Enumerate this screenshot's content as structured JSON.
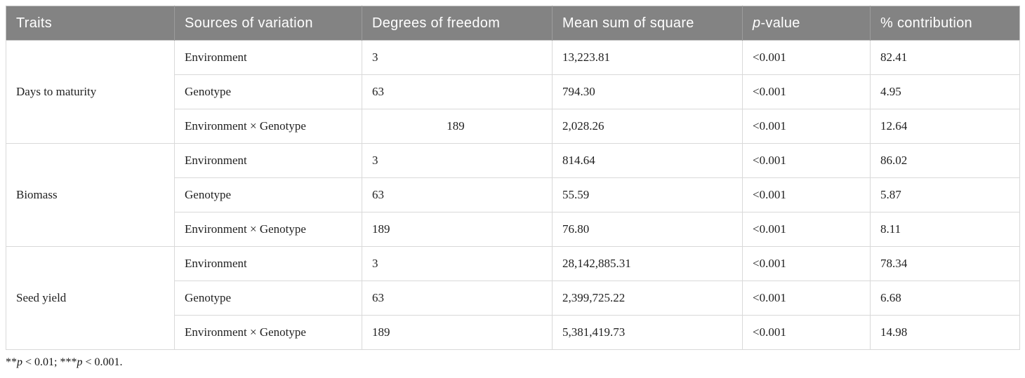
{
  "colors": {
    "header_bg": "#838383",
    "header_text": "#ffffff",
    "body_text": "#1f1f1f",
    "grid_line": "#d9d9d9",
    "group_line": "#c3c3c3"
  },
  "table": {
    "columns": [
      {
        "label": "Traits"
      },
      {
        "label": "Sources of variation"
      },
      {
        "label": "Degrees of freedom"
      },
      {
        "label": "Mean sum of square"
      },
      {
        "label_italic": "p",
        "label_rest": "-value"
      },
      {
        "label": "% contribution"
      }
    ],
    "groups": [
      {
        "trait": "Days to maturity",
        "rows": [
          {
            "source": "Environment",
            "df": "3",
            "df_centered": false,
            "mean_sum_of_square": "13,223.81",
            "p_value": "<0.001",
            "contribution": "82.41"
          },
          {
            "source": "Genotype",
            "df": "63",
            "df_centered": false,
            "mean_sum_of_square": "794.30",
            "p_value": "<0.001",
            "contribution": "4.95"
          },
          {
            "source": "Environment × Genotype",
            "df": "189",
            "df_centered": true,
            "mean_sum_of_square": "2,028.26",
            "p_value": "<0.001",
            "contribution": "12.64"
          }
        ]
      },
      {
        "trait": "Biomass",
        "rows": [
          {
            "source": "Environment",
            "df": "3",
            "df_centered": false,
            "mean_sum_of_square": "814.64",
            "p_value": "<0.001",
            "contribution": "86.02"
          },
          {
            "source": "Genotype",
            "df": "63",
            "df_centered": false,
            "mean_sum_of_square": "55.59",
            "p_value": "<0.001",
            "contribution": "5.87"
          },
          {
            "source": "Environment × Genotype",
            "df": "189",
            "df_centered": false,
            "mean_sum_of_square": "76.80",
            "p_value": "<0.001",
            "contribution": "8.11"
          }
        ]
      },
      {
        "trait": "Seed yield",
        "rows": [
          {
            "source": "Environment",
            "df": "3",
            "df_centered": false,
            "mean_sum_of_square": "28,142,885.31",
            "p_value": "<0.001",
            "contribution": "78.34"
          },
          {
            "source": "Genotype",
            "df": "63",
            "df_centered": false,
            "mean_sum_of_square": "2,399,725.22",
            "p_value": "<0.001",
            "contribution": "6.68"
          },
          {
            "source": "Environment × Genotype",
            "df": "189",
            "df_centered": false,
            "mean_sum_of_square": "5,381,419.73",
            "p_value": "<0.001",
            "contribution": "14.98"
          }
        ]
      }
    ]
  },
  "footnote": {
    "segments": [
      {
        "text": "**",
        "italic": false
      },
      {
        "text": "p",
        "italic": true
      },
      {
        "text": " < 0.01; ***",
        "italic": false
      },
      {
        "text": "p",
        "italic": true
      },
      {
        "text": " < 0.001.",
        "italic": false
      }
    ]
  }
}
